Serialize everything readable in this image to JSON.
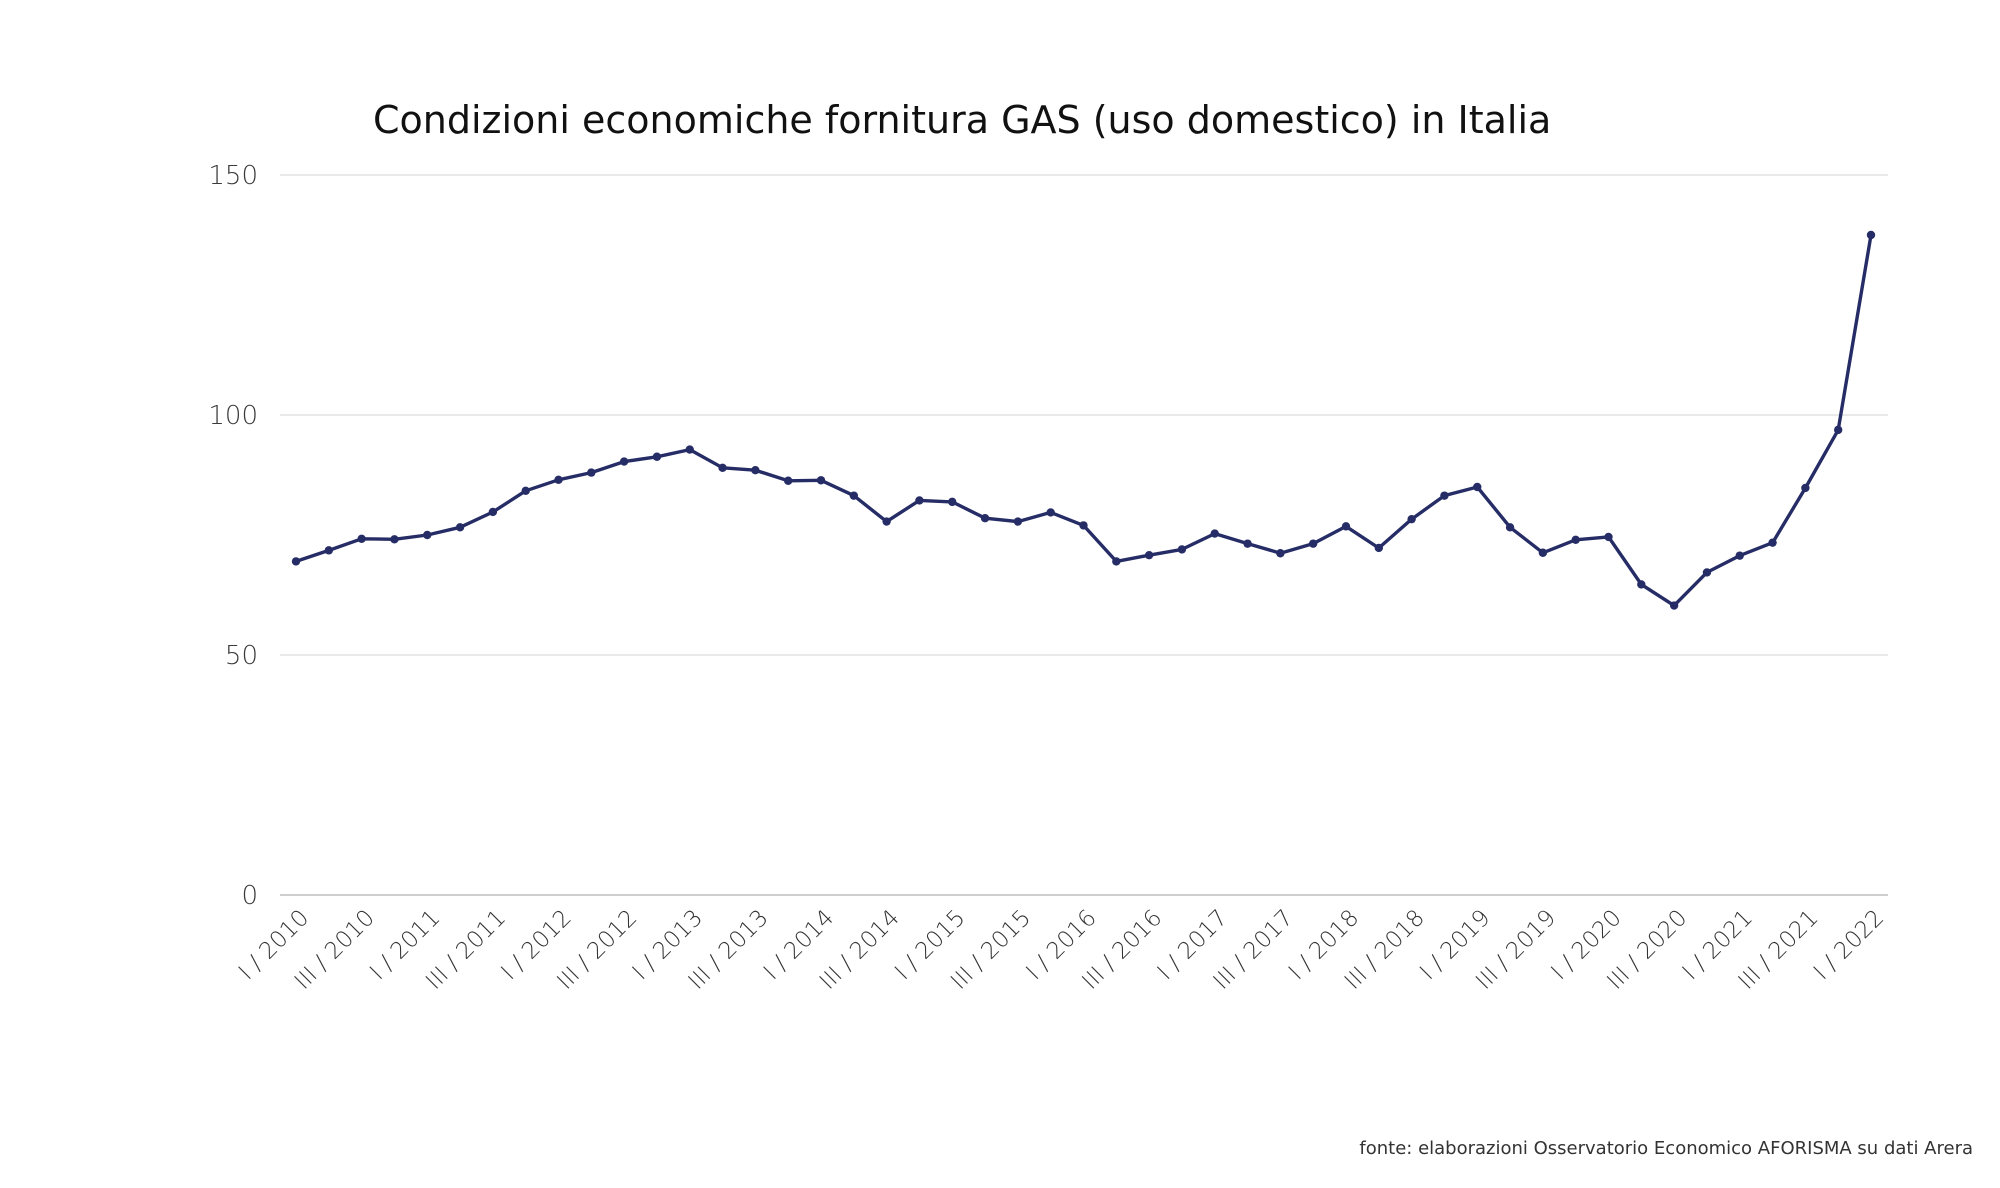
{
  "chart_data": {
    "type": "line",
    "title": "Condizioni economiche fornitura GAS (uso domestico) in Italia",
    "xlabel": "",
    "ylabel": "",
    "ylim": [
      0,
      150
    ],
    "yticks": [
      0,
      50,
      100,
      150
    ],
    "grid": true,
    "color": "#262d66",
    "x": [
      "I / 2010",
      "II / 2010",
      "III / 2010",
      "IV / 2010",
      "I / 2011",
      "II / 2011",
      "III / 2011",
      "IV / 2011",
      "I / 2012",
      "II / 2012",
      "III / 2012",
      "IV / 2012",
      "I / 2013",
      "II / 2013",
      "III / 2013",
      "IV / 2013",
      "I / 2014",
      "II / 2014",
      "III / 2014",
      "IV / 2014",
      "I / 2015",
      "II / 2015",
      "III / 2015",
      "IV / 2015",
      "I / 2016",
      "II / 2016",
      "III / 2016",
      "IV / 2016",
      "I / 2017",
      "II / 2017",
      "III / 2017",
      "IV / 2017",
      "I / 2018",
      "II / 2018",
      "III / 2018",
      "IV / 2018",
      "I / 2019",
      "II / 2019",
      "III / 2019",
      "IV / 2019",
      "I / 2020",
      "II / 2020",
      "III / 2020",
      "IV / 2020",
      "I / 2021",
      "II / 2021",
      "III / 2021",
      "IV / 2021",
      "I / 2022"
    ],
    "x_tick_labels": [
      "I / 2010",
      "III / 2010",
      "I / 2011",
      "III / 2011",
      "I / 2012",
      "III / 2012",
      "I / 2013",
      "III / 2013",
      "I / 2014",
      "III / 2014",
      "I / 2015",
      "III / 2015",
      "I / 2016",
      "III / 2016",
      "I / 2017",
      "III / 2017",
      "I / 2018",
      "III / 2018",
      "I / 2019",
      "III / 2019",
      "I / 2020",
      "III / 2020",
      "I / 2021",
      "III / 2021",
      "I / 2022"
    ],
    "series": [
      {
        "values": [
          69.5,
          71.8,
          74.2,
          74.1,
          75.0,
          76.6,
          79.8,
          84.2,
          86.5,
          88.0,
          90.3,
          91.3,
          92.8,
          89.0,
          88.5,
          86.3,
          86.4,
          83.2,
          77.8,
          82.2,
          81.9,
          78.5,
          77.8,
          79.7,
          77.0,
          69.5,
          70.8,
          72.0,
          75.3,
          73.2,
          71.2,
          73.2,
          76.8,
          72.3,
          78.3,
          83.2,
          85.0,
          76.6,
          71.3,
          74.0,
          74.6,
          64.7,
          60.3,
          67.2,
          70.7,
          73.4,
          84.8,
          96.9,
          137.5
        ]
      }
    ]
  },
  "footer": {
    "source": "fonte: elaborazioni Osservatorio Economico AFORISMA su dati Arera"
  }
}
